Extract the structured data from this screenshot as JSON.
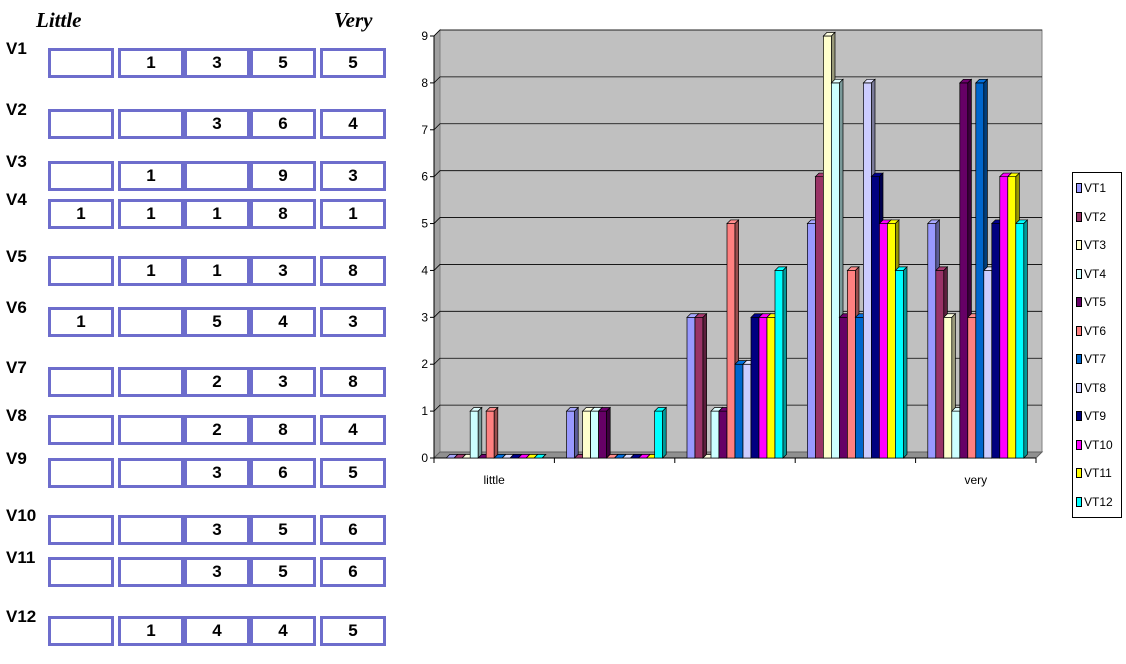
{
  "scale": {
    "low": "Little",
    "high": "Very"
  },
  "rows": [
    {
      "label": "V1",
      "cells": [
        "",
        "1",
        "3",
        "5",
        "5"
      ]
    },
    {
      "label": "V2",
      "cells": [
        "",
        "",
        "3",
        "6",
        "4"
      ]
    },
    {
      "label": "V3",
      "cells": [
        "",
        "1",
        "",
        "9",
        "3"
      ]
    },
    {
      "label": "V4",
      "cells": [
        "1",
        "1",
        "1",
        "8",
        "1"
      ]
    },
    {
      "label": "V5",
      "cells": [
        "",
        "1",
        "1",
        "3",
        "8"
      ]
    },
    {
      "label": "V6",
      "cells": [
        "1",
        "",
        "5",
        "4",
        "3"
      ]
    },
    {
      "label": "V7",
      "cells": [
        "",
        "",
        "2",
        "3",
        "8"
      ]
    },
    {
      "label": "V8",
      "cells": [
        "",
        "",
        "2",
        "8",
        "4"
      ]
    },
    {
      "label": "V9",
      "cells": [
        "",
        "",
        "3",
        "6",
        "5"
      ]
    },
    {
      "label": "V10",
      "cells": [
        "",
        "",
        "3",
        "5",
        "6"
      ]
    },
    {
      "label": "V11",
      "cells": [
        "",
        "",
        "3",
        "5",
        "6"
      ]
    },
    {
      "label": "V12",
      "cells": [
        "",
        "1",
        "4",
        "4",
        "5"
      ]
    }
  ],
  "chart_data": {
    "type": "bar",
    "style": "3d-clustered-column",
    "categories": [
      "little",
      "",
      "",
      "",
      "very"
    ],
    "ylim": [
      0,
      9
    ],
    "yticks": [
      "0",
      "1",
      "2",
      "3",
      "4",
      "5",
      "6",
      "7",
      "8",
      "9"
    ],
    "grid": true,
    "plot_background": "#c0c0c0",
    "legend_position": "right",
    "series": [
      {
        "name": "VT1",
        "color": "#9999ff",
        "values": [
          0,
          1,
          3,
          5,
          5
        ]
      },
      {
        "name": "VT2",
        "color": "#993366",
        "values": [
          0,
          0,
          3,
          6,
          4
        ]
      },
      {
        "name": "VT3",
        "color": "#ffffcc",
        "values": [
          0,
          1,
          0,
          9,
          3
        ]
      },
      {
        "name": "VT4",
        "color": "#ccffff",
        "values": [
          1,
          1,
          1,
          8,
          1
        ]
      },
      {
        "name": "VT5",
        "color": "#660066",
        "values": [
          0,
          1,
          1,
          3,
          8
        ]
      },
      {
        "name": "VT6",
        "color": "#ff8080",
        "values": [
          1,
          0,
          5,
          4,
          3
        ]
      },
      {
        "name": "VT7",
        "color": "#0066cc",
        "values": [
          0,
          0,
          2,
          3,
          8
        ]
      },
      {
        "name": "VT8",
        "color": "#ccccff",
        "values": [
          0,
          0,
          2,
          8,
          4
        ]
      },
      {
        "name": "VT9",
        "color": "#000080",
        "values": [
          0,
          0,
          3,
          6,
          5
        ]
      },
      {
        "name": "VT10",
        "color": "#ff00ff",
        "values": [
          0,
          0,
          3,
          5,
          6
        ]
      },
      {
        "name": "VT11",
        "color": "#ffff00",
        "values": [
          0,
          0,
          3,
          5,
          6
        ]
      },
      {
        "name": "VT12",
        "color": "#00ffff",
        "values": [
          0,
          1,
          4,
          4,
          5
        ]
      }
    ]
  }
}
